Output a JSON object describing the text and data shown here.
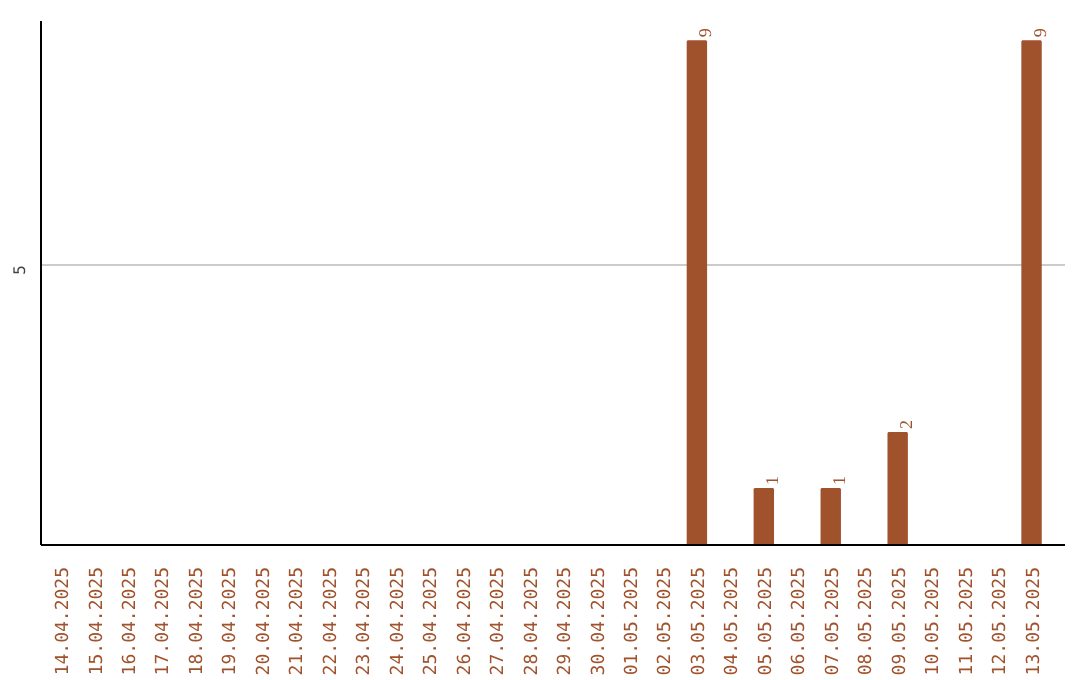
{
  "chart_data": {
    "type": "bar",
    "categories": [
      "14.04.2025",
      "15.04.2025",
      "16.04.2025",
      "17.04.2025",
      "18.04.2025",
      "19.04.2025",
      "20.04.2025",
      "21.04.2025",
      "22.04.2025",
      "23.04.2025",
      "24.04.2025",
      "25.04.2025",
      "26.04.2025",
      "27.04.2025",
      "28.04.2025",
      "29.04.2025",
      "30.04.2025",
      "01.05.2025",
      "02.05.2025",
      "03.05.2025",
      "04.05.2025",
      "05.05.2025",
      "06.05.2025",
      "07.05.2025",
      "08.05.2025",
      "09.05.2025",
      "10.05.2025",
      "11.05.2025",
      "12.05.2025",
      "13.05.2025"
    ],
    "values": [
      null,
      null,
      null,
      null,
      null,
      null,
      null,
      null,
      null,
      null,
      null,
      null,
      null,
      null,
      null,
      null,
      null,
      null,
      null,
      9,
      null,
      1,
      null,
      1,
      null,
      2,
      null,
      null,
      null,
      9
    ],
    "data_labels": true,
    "color": "#a0522d",
    "ref_lines": [
      {
        "axis": "y",
        "value": 5,
        "label": "5",
        "color": "#cccccc"
      }
    ],
    "tick_labels": "x"
  }
}
